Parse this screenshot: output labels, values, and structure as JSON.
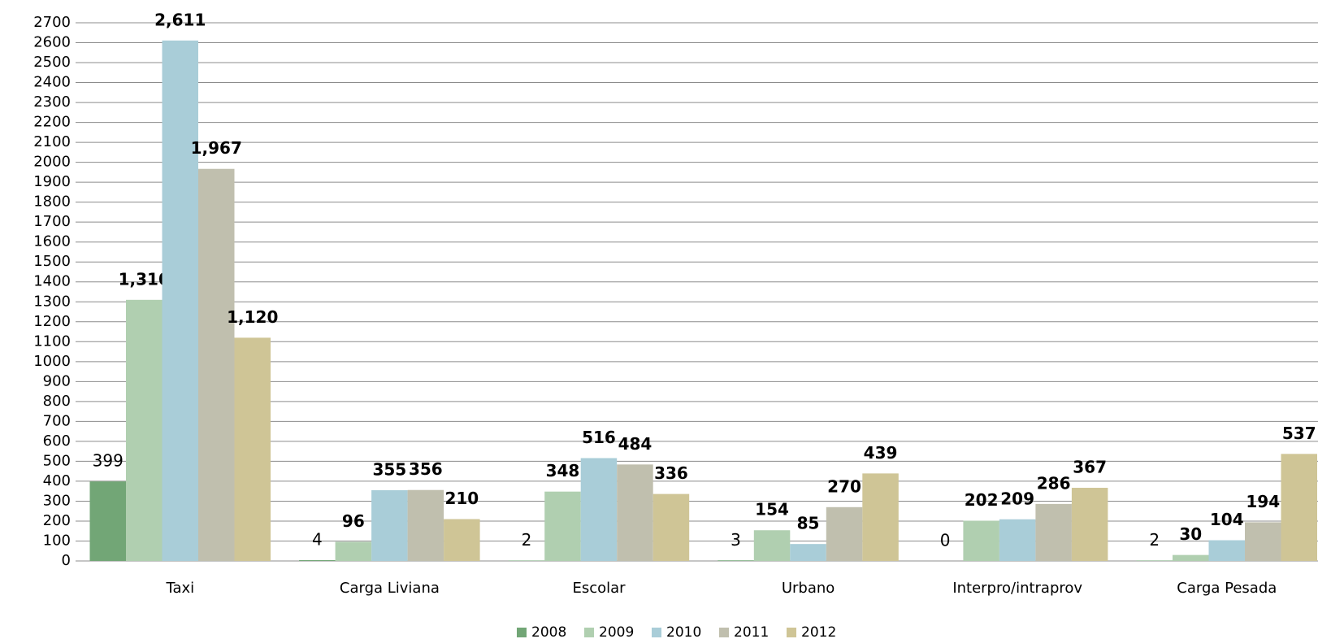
{
  "chart_data": {
    "type": "bar",
    "categories": [
      "Taxi",
      "Carga Liviana",
      "Escolar",
      "Urbano",
      "Interpro/intraprov",
      "Carga Pesada"
    ],
    "series": [
      {
        "name": "2008",
        "color": "#72a676",
        "bold_labels": false,
        "values": [
          399,
          4,
          2,
          3,
          0,
          2
        ]
      },
      {
        "name": "2009",
        "color": "#b0cfb0",
        "bold_labels": true,
        "values": [
          1310,
          96,
          348,
          154,
          202,
          30
        ],
        "value_labels": [
          "1,310",
          "96",
          "348",
          "154",
          "202",
          "30"
        ]
      },
      {
        "name": "2010",
        "color": "#a9cdd8",
        "bold_labels": true,
        "values": [
          2611,
          355,
          516,
          85,
          209,
          104
        ],
        "value_labels": [
          "2,611",
          "355",
          "516",
          "85",
          "209",
          "104"
        ]
      },
      {
        "name": "2011",
        "color": "#c0bfae",
        "bold_labels": true,
        "values": [
          1967,
          356,
          484,
          270,
          286,
          194
        ],
        "value_labels": [
          "1,967",
          "356",
          "484",
          "270",
          "286",
          "194"
        ]
      },
      {
        "name": "2012",
        "color": "#cfc596",
        "bold_labels": true,
        "values": [
          1120,
          210,
          336,
          439,
          367,
          537
        ],
        "value_labels": [
          "1,120",
          "210",
          "336",
          "439",
          "367",
          "537"
        ]
      }
    ],
    "ylim": [
      0,
      2700
    ],
    "yticks": [
      0,
      100,
      200,
      300,
      400,
      500,
      600,
      700,
      800,
      900,
      1000,
      1100,
      1200,
      1300,
      1400,
      1500,
      1600,
      1700,
      1800,
      1900,
      2000,
      2100,
      2200,
      2300,
      2400,
      2500,
      2600,
      2700
    ],
    "grid": true,
    "legend": "bottom"
  }
}
